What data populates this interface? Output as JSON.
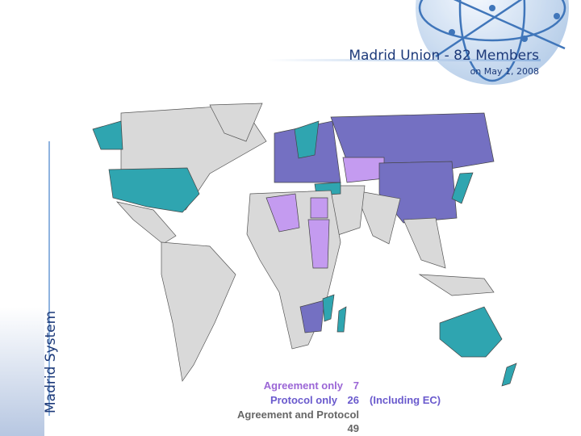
{
  "header": {
    "title": "Madrid Union - 82 Members",
    "subtitle": "on May 1, 2008"
  },
  "side_label": "Madrid System",
  "legend": [
    {
      "label": "Agreement only",
      "count": 7
    },
    {
      "label": "Protocol only",
      "count": 26,
      "note": "(Including EC)"
    },
    {
      "label": "Agreement and Protocol",
      "count": 49
    }
  ]
}
